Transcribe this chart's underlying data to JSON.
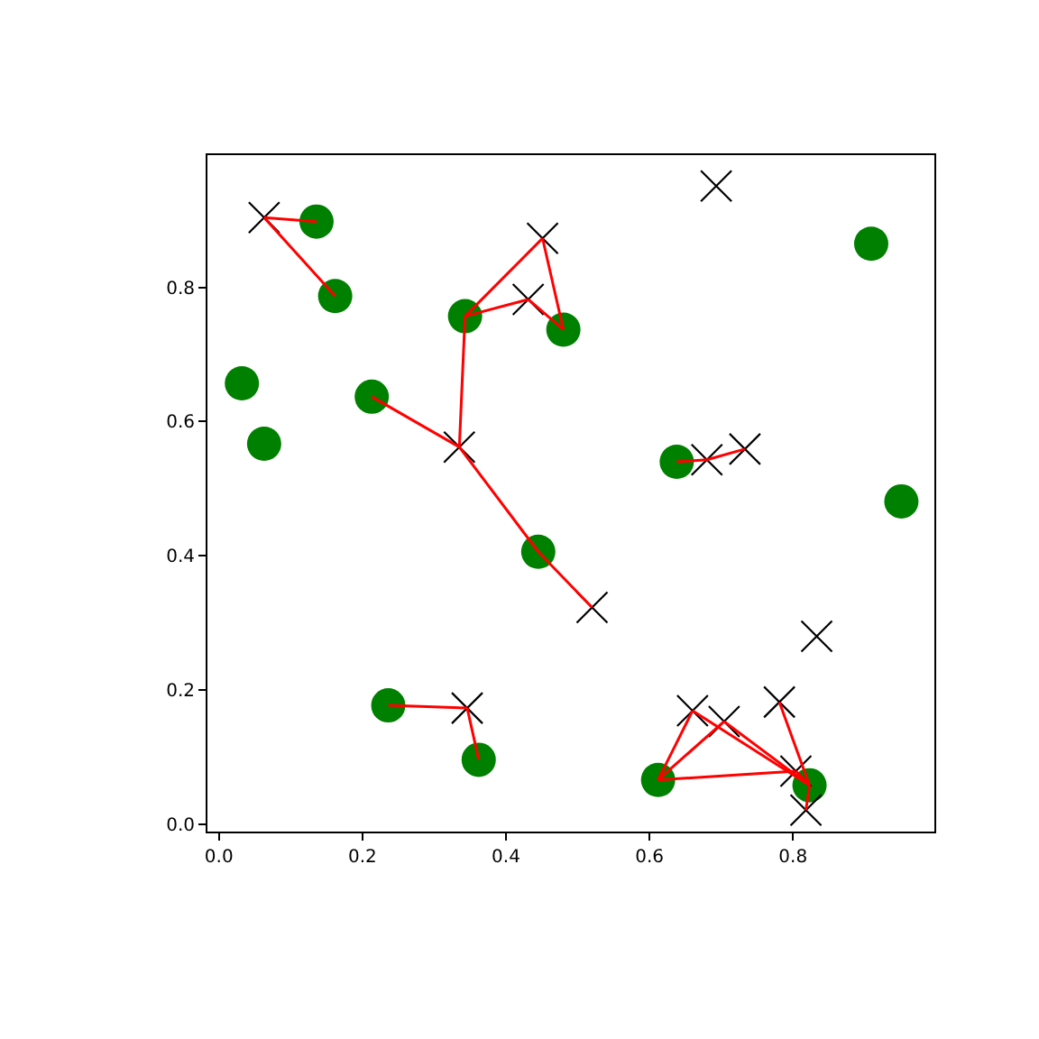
{
  "chart_data": {
    "type": "scatter",
    "xlim": [
      -0.016,
      0.997
    ],
    "ylim": [
      -0.011,
      0.997
    ],
    "xticks": [
      {
        "value": 0,
        "label": "0.0"
      },
      0.2,
      0.4,
      0.6,
      0.8
    ],
    "yticks": [
      {
        "value": 0,
        "label": "0.0"
      },
      0.2,
      0.4,
      0.6,
      0.8
    ],
    "series": [
      {
        "marker": "circle",
        "color": "#008000",
        "x": [
          0.136,
          0.162,
          0.032,
          0.063,
          0.213,
          0.343,
          0.48,
          0.909,
          0.638,
          0.951,
          0.445,
          0.236,
          0.362,
          0.612,
          0.823
        ],
        "values": [
          0.898,
          0.787,
          0.657,
          0.567,
          0.637,
          0.757,
          0.737,
          0.865,
          0.54,
          0.481,
          0.406,
          0.177,
          0.096,
          0.066,
          0.058
        ]
      },
      {
        "marker": "cross",
        "color": "#000000",
        "x": [
          0.063,
          0.451,
          0.431,
          0.335,
          0.693,
          0.68,
          0.733,
          0.52,
          0.833,
          0.66,
          0.704,
          0.781,
          0.804,
          0.818,
          0.346
        ],
        "values": [
          0.904,
          0.873,
          0.782,
          0.562,
          0.951,
          0.543,
          0.559,
          0.323,
          0.28,
          0.169,
          0.153,
          0.182,
          0.079,
          0.021,
          0.173
        ]
      },
      {
        "type": "line",
        "marker": "none",
        "line_style": "solid",
        "color": "#ff0000",
        "x": [
          0.063,
          0.136,
          null,
          0.063,
          0.162,
          null,
          0.343,
          0.451,
          null,
          0.343,
          0.431,
          null,
          0.451,
          0.48,
          null,
          0.431,
          0.48,
          null,
          0.343,
          0.335,
          null,
          0.213,
          0.335,
          null,
          0.335,
          0.445,
          null,
          0.445,
          0.52,
          null,
          0.638,
          0.68,
          null,
          0.68,
          0.733,
          null,
          0.236,
          0.346,
          null,
          0.346,
          0.362,
          null,
          0.612,
          0.66,
          null,
          0.612,
          0.704,
          null,
          0.612,
          0.804,
          null,
          0.66,
          0.823,
          null,
          0.704,
          0.823,
          null,
          0.781,
          0.823,
          null,
          0.804,
          0.823,
          null,
          0.818,
          0.823
        ],
        "values": [
          0.904,
          0.898,
          null,
          0.904,
          0.787,
          null,
          0.757,
          0.873,
          null,
          0.757,
          0.782,
          null,
          0.873,
          0.737,
          null,
          0.782,
          0.737,
          null,
          0.757,
          0.562,
          null,
          0.637,
          0.562,
          null,
          0.562,
          0.406,
          null,
          0.406,
          0.323,
          null,
          0.54,
          0.543,
          null,
          0.543,
          0.559,
          null,
          0.177,
          0.173,
          null,
          0.173,
          0.096,
          null,
          0.066,
          0.169,
          null,
          0.066,
          0.153,
          null,
          0.066,
          0.079,
          null,
          0.169,
          0.058,
          null,
          0.153,
          0.058,
          null,
          0.182,
          0.058,
          null,
          0.079,
          0.058,
          null,
          0.021,
          0.058
        ]
      }
    ]
  }
}
